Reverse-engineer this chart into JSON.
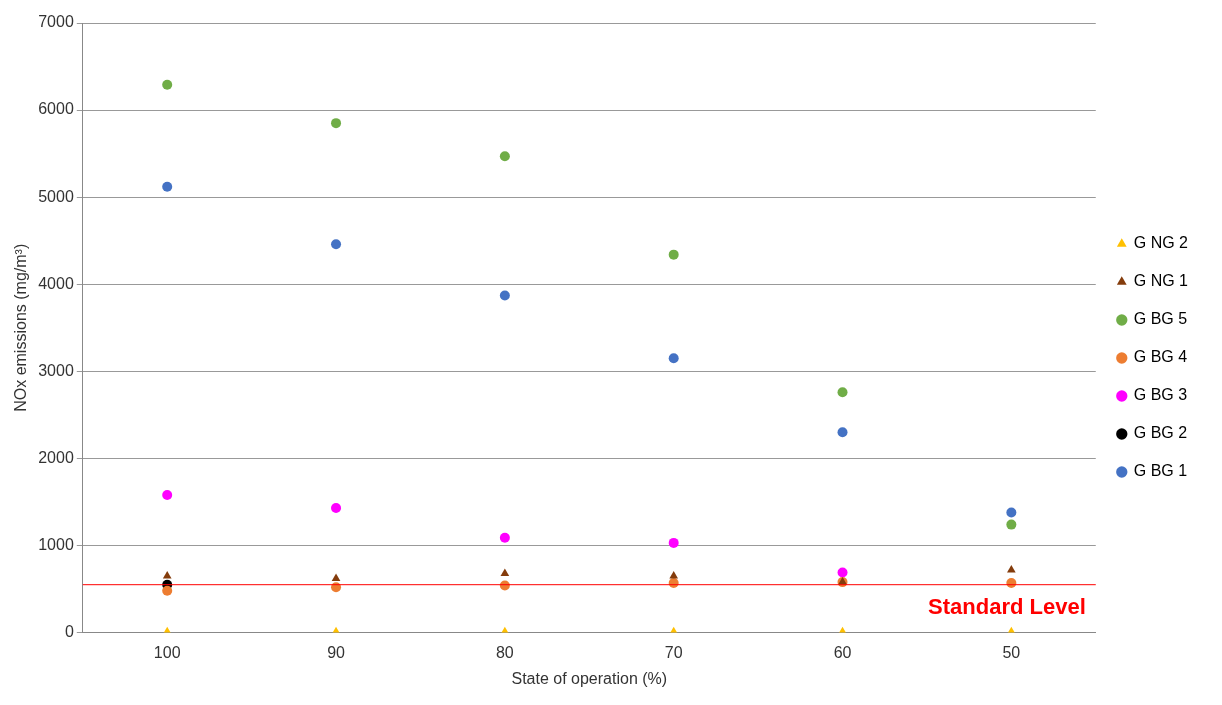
{
  "chart_data": {
    "type": "scatter",
    "xlabel": "State of operation (%)",
    "ylabel": "NOx emissions (mg/m³)",
    "categories": [
      "100",
      "90",
      "80",
      "70",
      "60",
      "50"
    ],
    "series": [
      {
        "name": "G BG 1",
        "color": "#4472c4",
        "marker": "circle",
        "values": [
          5120,
          4460,
          3870,
          3150,
          2300,
          1380
        ]
      },
      {
        "name": "G BG 2",
        "color": "#000000",
        "marker": "circle",
        "values": [
          550,
          null,
          null,
          null,
          null,
          null
        ]
      },
      {
        "name": "G BG 3",
        "color": "#ff00ff",
        "marker": "circle",
        "values": [
          1580,
          1430,
          1090,
          1030,
          690,
          null
        ]
      },
      {
        "name": "G BG 4",
        "color": "#ed7d31",
        "marker": "circle",
        "values": [
          480,
          520,
          540,
          570,
          580,
          570
        ]
      },
      {
        "name": "G BG 5",
        "color": "#70ad47",
        "marker": "circle",
        "values": [
          6290,
          5850,
          5470,
          4340,
          2760,
          1240
        ]
      },
      {
        "name": "G NG 1",
        "color": "#843c0c",
        "marker": "triangle",
        "values": [
          650,
          620,
          680,
          650,
          580,
          720
        ]
      },
      {
        "name": "G NG 2",
        "color": "#ffc000",
        "marker": "triangle",
        "values": [
          10,
          10,
          10,
          10,
          10,
          10
        ]
      }
    ],
    "ylim": [
      0,
      7000
    ],
    "yticks": [
      0,
      1000,
      2000,
      3000,
      4000,
      5000,
      6000,
      7000
    ],
    "grid": "y",
    "legend": "right",
    "ref_lines": [
      {
        "axis": "y",
        "value": 550,
        "label": "Standard Level",
        "color": "#ff0000"
      }
    ]
  }
}
